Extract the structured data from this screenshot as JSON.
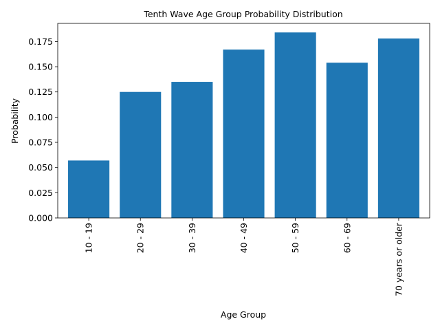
{
  "chart_data": {
    "type": "bar",
    "title": "Tenth Wave Age Group Probability Distribution",
    "xlabel": "Age Group",
    "ylabel": "Probability",
    "categories": [
      "10 - 19",
      "20 - 29",
      "30 - 39",
      "40 - 49",
      "50 - 59",
      "60 - 69",
      "70 years or older"
    ],
    "values": [
      0.057,
      0.125,
      0.135,
      0.167,
      0.184,
      0.154,
      0.178
    ],
    "ylim": [
      0,
      0.193
    ],
    "yticks": [
      0.0,
      0.025,
      0.05,
      0.075,
      0.1,
      0.125,
      0.15,
      0.175
    ],
    "ytick_labels": [
      "0.000",
      "0.025",
      "0.050",
      "0.075",
      "0.100",
      "0.125",
      "0.150",
      "0.175"
    ],
    "grid": false,
    "legend": "none",
    "bar_color": "#1f77b4"
  }
}
